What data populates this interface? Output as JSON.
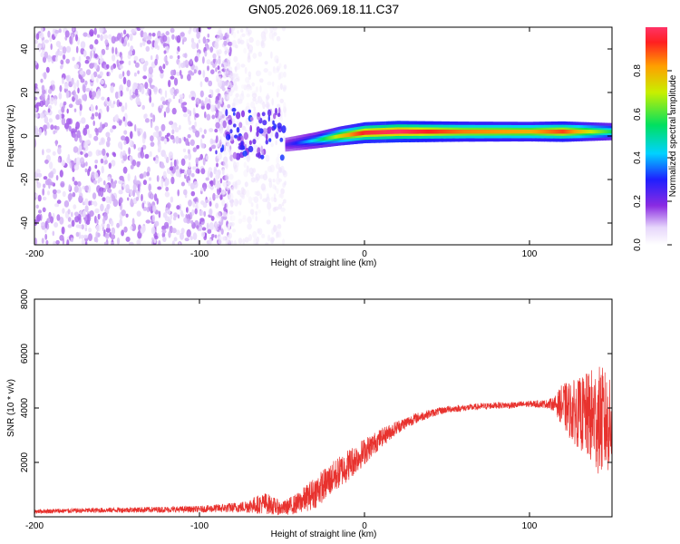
{
  "title": "GN05.2026.069.18.11.C37",
  "chart_data": [
    {
      "type": "heatmap",
      "xlabel": "Height of straight line (km)",
      "ylabel": "Frequency (Hz)",
      "xlim": [
        -200,
        150
      ],
      "ylim": [
        -50,
        50
      ],
      "xticks": [
        "-200",
        "-100",
        "0",
        "100"
      ],
      "yticks": [
        "-40",
        "-20",
        "0",
        "20",
        "40"
      ],
      "colorbar": {
        "label": "Normalized spectral amplitude",
        "ticks": [
          "0.0",
          "0.2",
          "0.4",
          "0.6",
          "0.8"
        ],
        "range": [
          0,
          1
        ]
      },
      "regions": [
        {
          "name": "noise",
          "x": [
            -200,
            -80
          ],
          "y": [
            -50,
            50
          ],
          "amplitude": 0.12
        },
        {
          "name": "faint-noise",
          "x": [
            -90,
            -48
          ],
          "y": [
            -50,
            50
          ],
          "amplitude": 0.05
        },
        {
          "name": "onset",
          "x": [
            -90,
            -48
          ],
          "y": [
            -10,
            12
          ],
          "amplitude": 0.25
        }
      ],
      "ridge": [
        {
          "x": -48,
          "y": -4,
          "amp": 0.22
        },
        {
          "x": -30,
          "y": -2,
          "amp": 0.45
        },
        {
          "x": -15,
          "y": 0,
          "amp": 0.75
        },
        {
          "x": 0,
          "y": 1.5,
          "amp": 0.95
        },
        {
          "x": 20,
          "y": 2,
          "amp": 1.0
        },
        {
          "x": 60,
          "y": 2,
          "amp": 0.85
        },
        {
          "x": 100,
          "y": 2,
          "amp": 0.8
        },
        {
          "x": 120,
          "y": 2,
          "amp": 0.9
        },
        {
          "x": 150,
          "y": 2,
          "amp": 0.55
        }
      ]
    },
    {
      "type": "line",
      "xlabel": "Height of straight line (km)",
      "ylabel": "SNR (10 * v/v)",
      "xlim": [
        -200,
        150
      ],
      "ylim": [
        0,
        8000
      ],
      "xticks": [
        "-200",
        "-100",
        "0",
        "100"
      ],
      "yticks": [
        "2000",
        "4000",
        "6000",
        "8000"
      ],
      "color": "#e8322e",
      "series": [
        {
          "x": [
            -200,
            -150,
            -100,
            -75,
            -60,
            -50,
            -40,
            -30,
            -20,
            -10,
            0,
            10,
            20,
            30,
            40,
            50,
            60,
            70,
            80,
            90,
            100,
            110,
            115,
            120,
            125,
            130,
            135,
            140,
            145,
            150
          ],
          "y": [
            200,
            250,
            280,
            350,
            500,
            300,
            500,
            900,
            1400,
            1900,
            2400,
            2900,
            3300,
            3600,
            3800,
            3950,
            4000,
            4050,
            4100,
            4100,
            4150,
            4150,
            4150,
            4100,
            3900,
            3800,
            3700,
            3600,
            3500,
            3300
          ],
          "noise": [
            80,
            100,
            120,
            200,
            400,
            250,
            400,
            600,
            600,
            600,
            500,
            350,
            250,
            200,
            150,
            130,
            120,
            120,
            120,
            120,
            120,
            150,
            250,
            800,
            1100,
            1300,
            1600,
            2000,
            2000,
            1600
          ]
        }
      ]
    }
  ]
}
